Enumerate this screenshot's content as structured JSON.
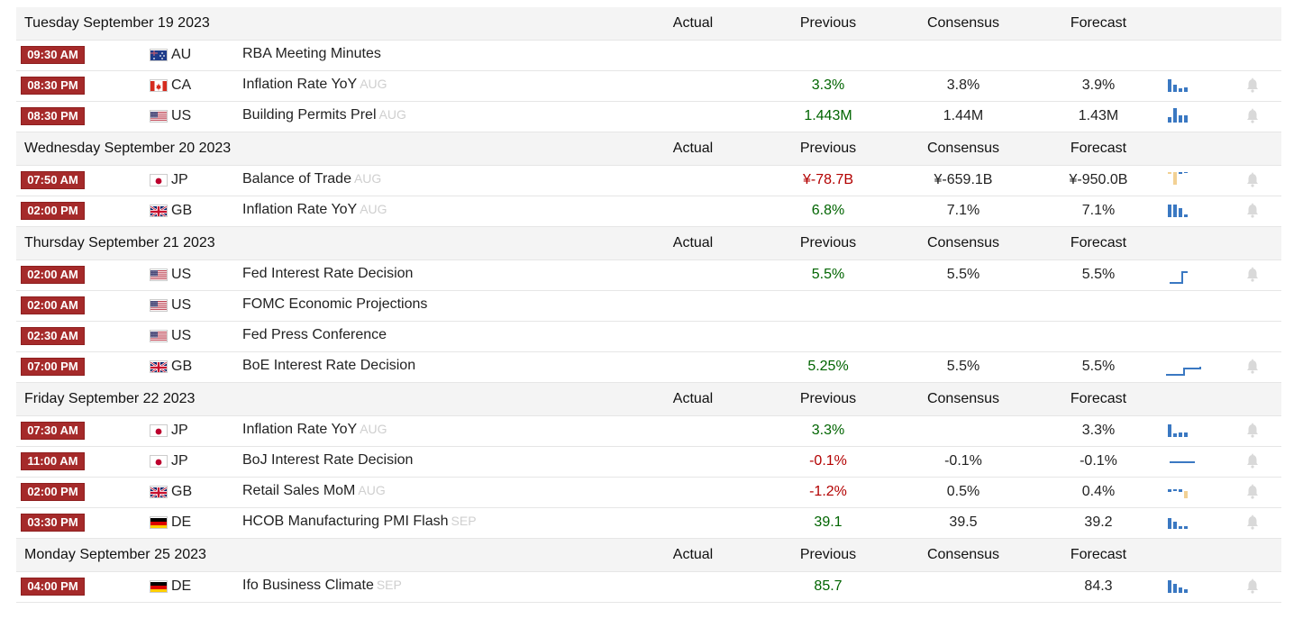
{
  "columns": {
    "actual": "Actual",
    "previous": "Previous",
    "consensus": "Consensus",
    "forecast": "Forecast"
  },
  "colors": {
    "time_badge": "#a52a2a",
    "positive": "#006400",
    "negative": "#b30000",
    "spark_blue": "#3a78c2",
    "spark_tan": "#f2d194"
  },
  "days": [
    {
      "date": "Tuesday September 19 2023",
      "events": [
        {
          "time": "09:30 AM",
          "country": "AU",
          "flag": "au-flag-icon",
          "event": "RBA Meeting Minutes",
          "ref": "",
          "previous": "",
          "prev_color": "",
          "consensus": "",
          "forecast": "",
          "spark": null,
          "bell": false
        },
        {
          "time": "08:30 PM",
          "country": "CA",
          "flag": "ca-flag-icon",
          "event": "Inflation Rate YoY",
          "ref": "AUG",
          "previous": "3.3%",
          "prev_color": "green",
          "consensus": "3.8%",
          "forecast": "3.9%",
          "spark": "bars-a",
          "bell": true
        },
        {
          "time": "08:30 PM",
          "country": "US",
          "flag": "us-flag-icon",
          "event": "Building Permits Prel",
          "ref": "AUG",
          "previous": "1.443M",
          "prev_color": "green",
          "consensus": "1.44M",
          "forecast": "1.43M",
          "spark": "bars-b",
          "bell": true
        }
      ]
    },
    {
      "date": "Wednesday September 20 2023",
      "events": [
        {
          "time": "07:50 AM",
          "country": "JP",
          "flag": "jp-flag-icon",
          "event": "Balance of Trade",
          "ref": "AUG",
          "previous": "¥-78.7B",
          "prev_color": "red",
          "consensus": "¥-659.1B",
          "forecast": "¥-950.0B",
          "spark": "trade",
          "bell": true
        },
        {
          "time": "02:00 PM",
          "country": "GB",
          "flag": "gb-flag-icon",
          "event": "Inflation Rate YoY",
          "ref": "AUG",
          "previous": "6.8%",
          "prev_color": "green",
          "consensus": "7.1%",
          "forecast": "7.1%",
          "spark": "bars-c",
          "bell": true
        }
      ]
    },
    {
      "date": "Thursday September 21 2023",
      "events": [
        {
          "time": "02:00 AM",
          "country": "US",
          "flag": "us-flag-icon",
          "event": "Fed Interest Rate Decision",
          "ref": "",
          "previous": "5.5%",
          "prev_color": "green",
          "consensus": "5.5%",
          "forecast": "5.5%",
          "spark": "step-a",
          "bell": true
        },
        {
          "time": "02:00 AM",
          "country": "US",
          "flag": "us-flag-icon",
          "event": "FOMC Economic Projections",
          "ref": "",
          "previous": "",
          "prev_color": "",
          "consensus": "",
          "forecast": "",
          "spark": null,
          "bell": false
        },
        {
          "time": "02:30 AM",
          "country": "US",
          "flag": "us-flag-icon",
          "event": "Fed Press Conference",
          "ref": "",
          "previous": "",
          "prev_color": "",
          "consensus": "",
          "forecast": "",
          "spark": null,
          "bell": false
        },
        {
          "time": "07:00 PM",
          "country": "GB",
          "flag": "gb-flag-icon",
          "event": "BoE Interest Rate Decision",
          "ref": "",
          "previous": "5.25%",
          "prev_color": "green",
          "consensus": "5.5%",
          "forecast": "5.5%",
          "spark": "step-b",
          "bell": true
        }
      ]
    },
    {
      "date": "Friday September 22 2023",
      "events": [
        {
          "time": "07:30 AM",
          "country": "JP",
          "flag": "jp-flag-icon",
          "event": "Inflation Rate YoY",
          "ref": "AUG",
          "previous": "3.3%",
          "prev_color": "green",
          "consensus": "",
          "forecast": "3.3%",
          "spark": "bars-d",
          "bell": true
        },
        {
          "time": "11:00 AM",
          "country": "JP",
          "flag": "jp-flag-icon",
          "event": "BoJ Interest Rate Decision",
          "ref": "",
          "previous": "-0.1%",
          "prev_color": "red",
          "consensus": "-0.1%",
          "forecast": "-0.1%",
          "spark": "flat",
          "bell": true
        },
        {
          "time": "02:00 PM",
          "country": "GB",
          "flag": "gb-flag-icon",
          "event": "Retail Sales MoM",
          "ref": "AUG",
          "previous": "-1.2%",
          "prev_color": "red",
          "consensus": "0.5%",
          "forecast": "0.4%",
          "spark": "retail",
          "bell": true
        },
        {
          "time": "03:30 PM",
          "country": "DE",
          "flag": "de-flag-icon",
          "event": "HCOB Manufacturing PMI Flash",
          "ref": "SEP",
          "previous": "39.1",
          "prev_color": "green",
          "consensus": "39.5",
          "forecast": "39.2",
          "spark": "bars-e",
          "bell": true
        }
      ]
    },
    {
      "date": "Monday September 25 2023",
      "events": [
        {
          "time": "04:00 PM",
          "country": "DE",
          "flag": "de-flag-icon",
          "event": "Ifo Business Climate",
          "ref": "SEP",
          "previous": "85.7",
          "prev_color": "green",
          "consensus": "",
          "forecast": "84.3",
          "spark": "bars-f",
          "bell": true
        }
      ]
    }
  ]
}
